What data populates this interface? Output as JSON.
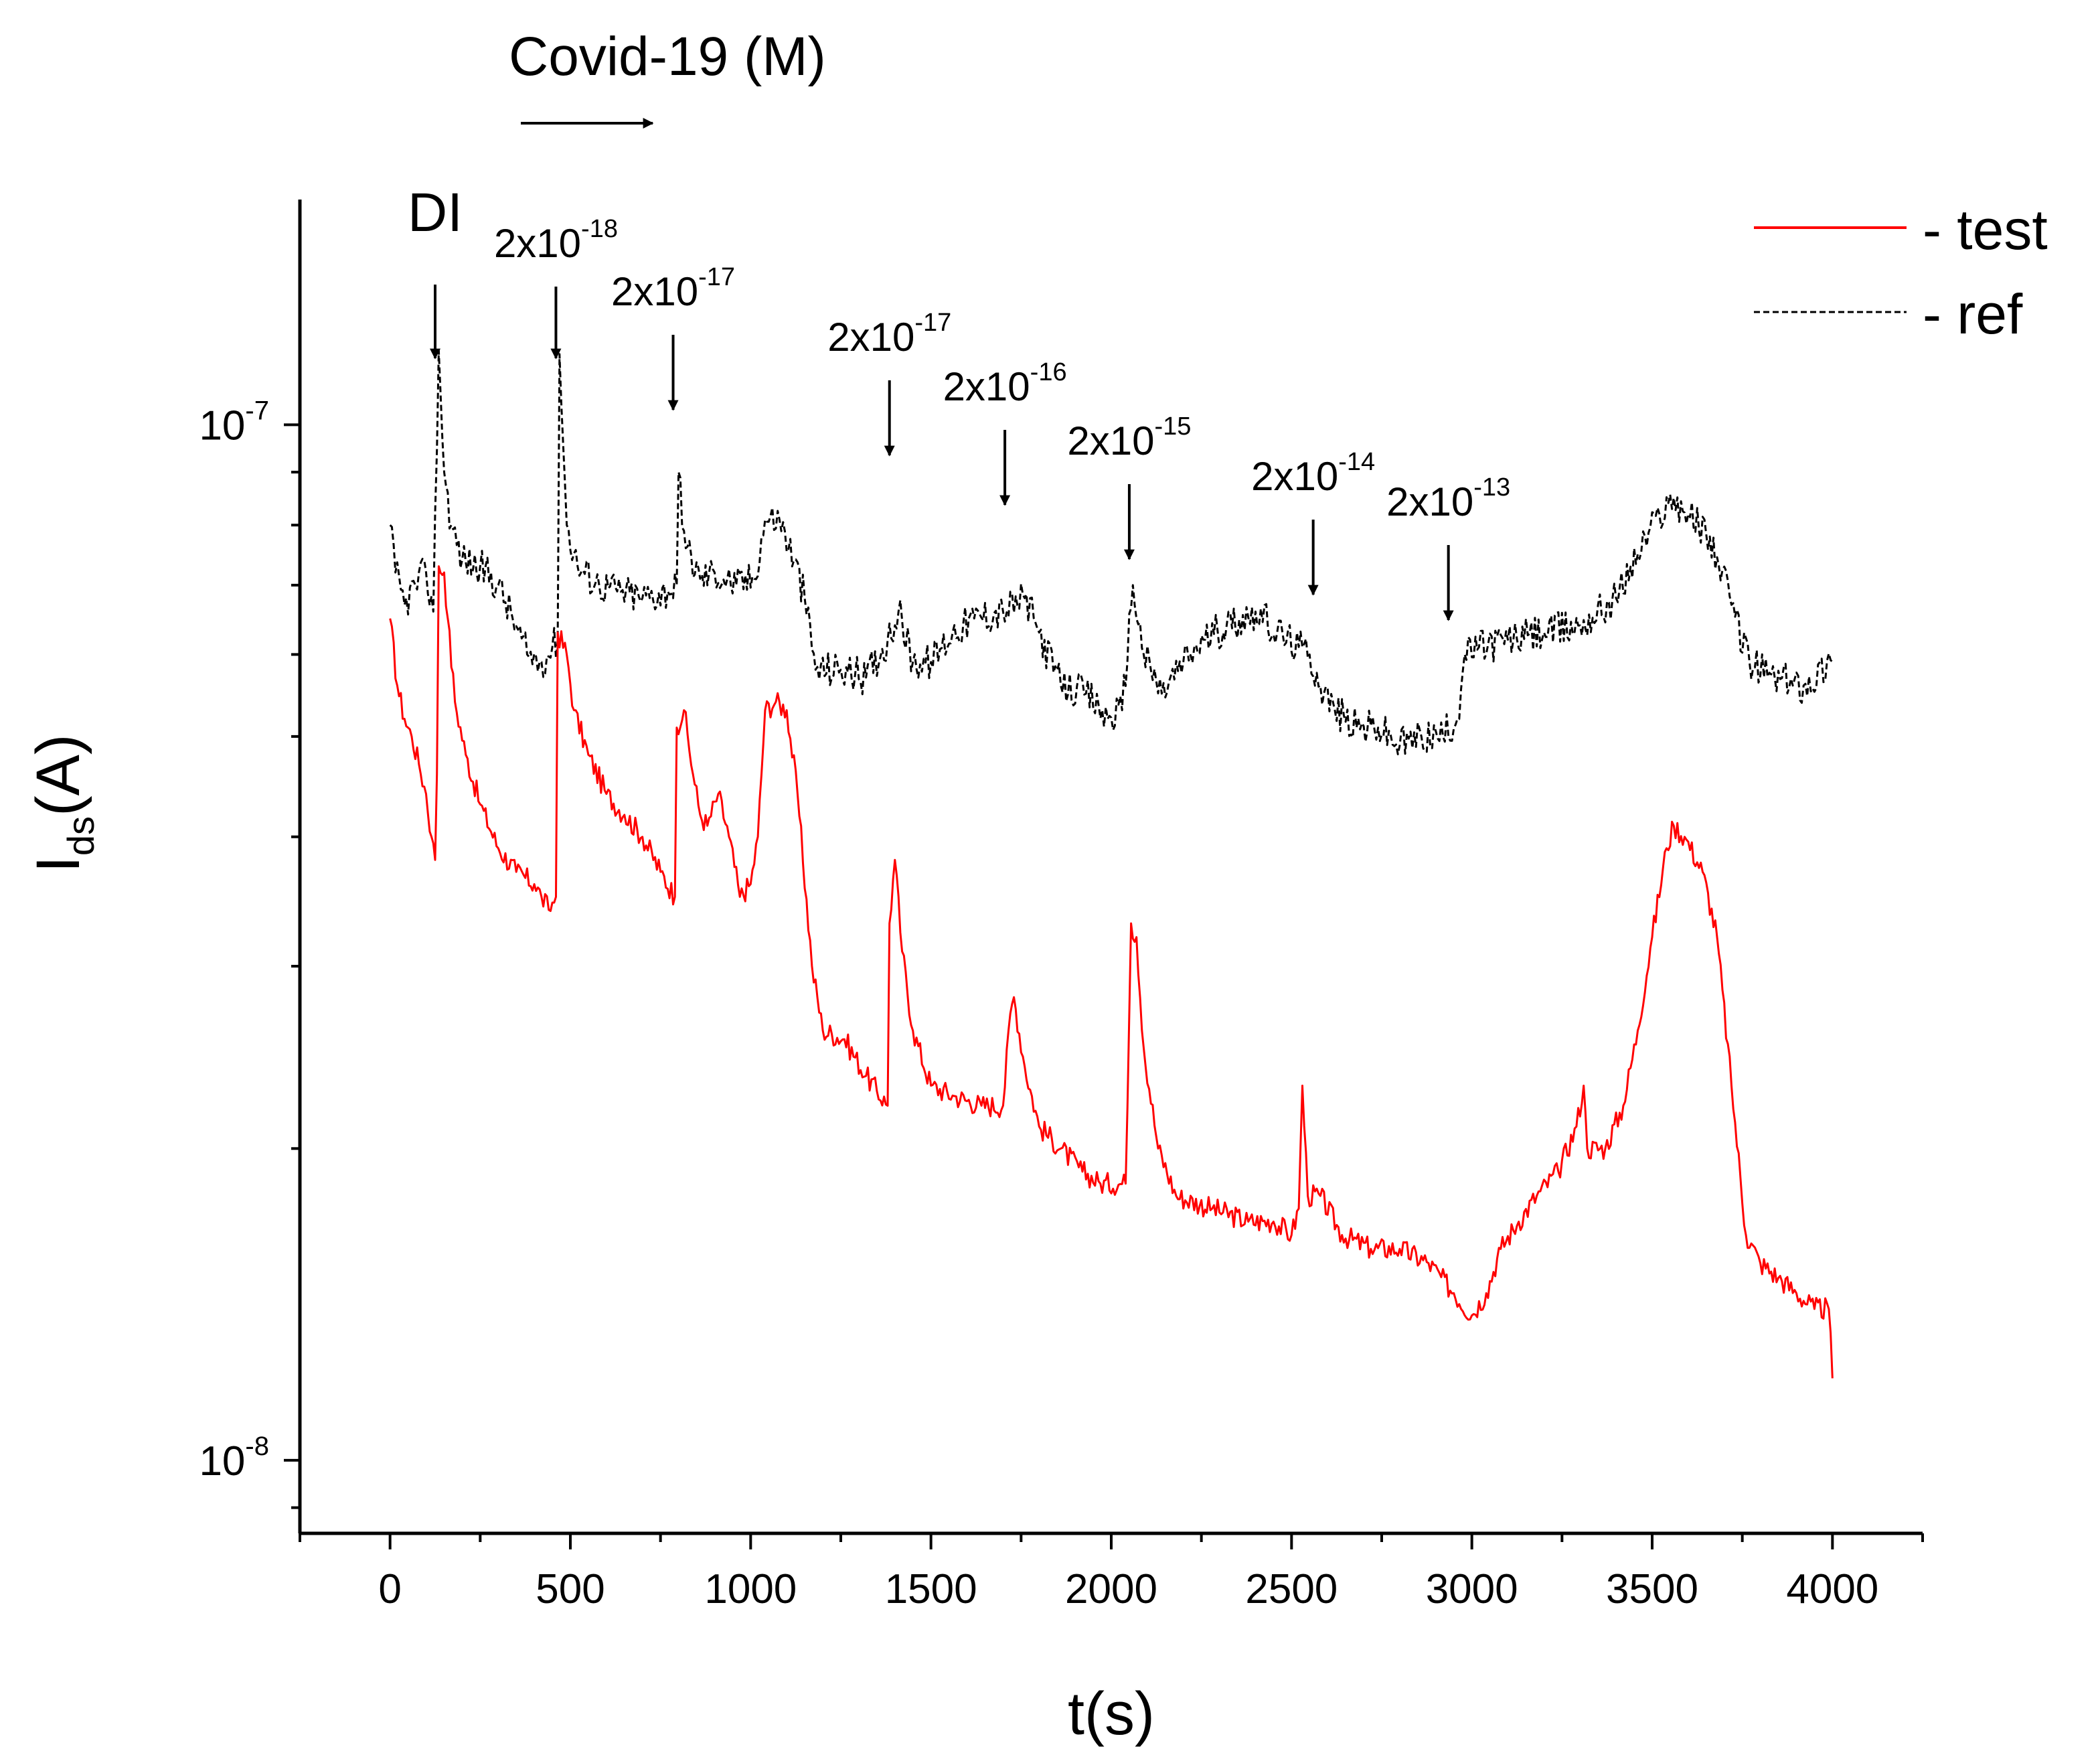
{
  "chart_data": {
    "type": "line",
    "title": "",
    "xlabel": "t(s)",
    "ylabel": "I",
    "ylabel_sub": "ds",
    "ylabel_suffix": "(A)",
    "yscale": "log",
    "xlim": [
      -250,
      4250
    ],
    "ylim": [
      8.5e-09,
      1.65e-07
    ],
    "x_ticks": [
      0,
      500,
      1000,
      1500,
      2000,
      2500,
      3000,
      3500,
      4000
    ],
    "x_tick_labels": [
      "0",
      "500",
      "1000",
      "1500",
      "2000",
      "2500",
      "3000",
      "3500",
      "4000"
    ],
    "y_ticks": [
      {
        "value": 1e-07,
        "base": "10",
        "exp": "-7"
      },
      {
        "value": 1e-08,
        "base": "10",
        "exp": "-8"
      }
    ],
    "grid": false,
    "legend_position": "top-right",
    "series": [
      {
        "name": "- test",
        "color": "#ff0000",
        "style": "solid",
        "points": [
          [
            0,
            6.5e-08
          ],
          [
            20,
            5.6e-08
          ],
          [
            40,
            5.2e-08
          ],
          [
            60,
            5e-08
          ],
          [
            80,
            4.7e-08
          ],
          [
            100,
            4.4e-08
          ],
          [
            115,
            4e-08
          ],
          [
            125,
            3.8e-08
          ],
          [
            130,
            4.6e-08
          ],
          [
            135,
            7.3e-08
          ],
          [
            150,
            7.2e-08
          ],
          [
            160,
            6.5e-08
          ],
          [
            180,
            5.4e-08
          ],
          [
            210,
            4.8e-08
          ],
          [
            250,
            4.3e-08
          ],
          [
            300,
            3.9e-08
          ],
          [
            350,
            3.7e-08
          ],
          [
            400,
            3.6e-08
          ],
          [
            420,
            3.5e-08
          ],
          [
            440,
            3.4e-08
          ],
          [
            460,
            3.5e-08
          ],
          [
            465,
            6.3e-08
          ],
          [
            490,
            6e-08
          ],
          [
            510,
            5.3e-08
          ],
          [
            550,
            4.8e-08
          ],
          [
            600,
            4.4e-08
          ],
          [
            650,
            4.2e-08
          ],
          [
            700,
            4e-08
          ],
          [
            750,
            3.7e-08
          ],
          [
            790,
            3.5e-08
          ],
          [
            795,
            5.1e-08
          ],
          [
            815,
            5.3e-08
          ],
          [
            840,
            4.6e-08
          ],
          [
            860,
            4.2e-08
          ],
          [
            880,
            4.1e-08
          ],
          [
            910,
            4.4e-08
          ],
          [
            940,
            4e-08
          ],
          [
            970,
            3.5e-08
          ],
          [
            1000,
            3.6e-08
          ],
          [
            1020,
            4e-08
          ],
          [
            1040,
            5.3e-08
          ],
          [
            1070,
            5.4e-08
          ],
          [
            1100,
            5.3e-08
          ],
          [
            1130,
            4.4e-08
          ],
          [
            1170,
            3e-08
          ],
          [
            1200,
            2.6e-08
          ],
          [
            1260,
            2.55e-08
          ],
          [
            1320,
            2.35e-08
          ],
          [
            1380,
            2.2e-08
          ],
          [
            1385,
            3.3e-08
          ],
          [
            1400,
            3.8e-08
          ],
          [
            1420,
            3.1e-08
          ],
          [
            1450,
            2.6e-08
          ],
          [
            1500,
            2.3e-08
          ],
          [
            1560,
            2.25e-08
          ],
          [
            1640,
            2.2e-08
          ],
          [
            1700,
            2.2e-08
          ],
          [
            1720,
            2.7e-08
          ],
          [
            1730,
            2.8e-08
          ],
          [
            1760,
            2.4e-08
          ],
          [
            1800,
            2.1e-08
          ],
          [
            1860,
            2e-08
          ],
          [
            1920,
            1.9e-08
          ],
          [
            1970,
            1.85e-08
          ],
          [
            2040,
            1.85e-08
          ],
          [
            2055,
            3.3e-08
          ],
          [
            2070,
            3.2e-08
          ],
          [
            2090,
            2.5e-08
          ],
          [
            2130,
            2e-08
          ],
          [
            2180,
            1.8e-08
          ],
          [
            2280,
            1.75e-08
          ],
          [
            2380,
            1.7e-08
          ],
          [
            2450,
            1.7e-08
          ],
          [
            2500,
            1.65e-08
          ],
          [
            2520,
            1.75e-08
          ],
          [
            2530,
            2.3e-08
          ],
          [
            2545,
            1.8e-08
          ],
          [
            2580,
            1.8e-08
          ],
          [
            2640,
            1.65e-08
          ],
          [
            2720,
            1.6e-08
          ],
          [
            2800,
            1.6e-08
          ],
          [
            2880,
            1.55e-08
          ],
          [
            2950,
            1.45e-08
          ],
          [
            3000,
            1.38e-08
          ],
          [
            3040,
            1.45e-08
          ],
          [
            3080,
            1.6e-08
          ],
          [
            3130,
            1.7e-08
          ],
          [
            3180,
            1.8e-08
          ],
          [
            3240,
            1.9e-08
          ],
          [
            3290,
            2.1e-08
          ],
          [
            3310,
            2.3e-08
          ],
          [
            3320,
            2e-08
          ],
          [
            3370,
            2e-08
          ],
          [
            3420,
            2.2e-08
          ],
          [
            3460,
            2.6e-08
          ],
          [
            3500,
            3.2e-08
          ],
          [
            3540,
            3.9e-08
          ],
          [
            3560,
            4.1e-08
          ],
          [
            3590,
            4e-08
          ],
          [
            3640,
            3.7e-08
          ],
          [
            3680,
            3.2e-08
          ],
          [
            3720,
            2.3e-08
          ],
          [
            3760,
            1.65e-08
          ],
          [
            3800,
            1.55e-08
          ],
          [
            3850,
            1.5e-08
          ],
          [
            3900,
            1.45e-08
          ],
          [
            3950,
            1.4e-08
          ],
          [
            3990,
            1.4e-08
          ],
          [
            4000,
            1.2e-08
          ]
        ]
      },
      {
        "name": "- ref",
        "color": "#000000",
        "style": "dashed",
        "points": [
          [
            0,
            8e-08
          ],
          [
            15,
            7.2e-08
          ],
          [
            40,
            6.7e-08
          ],
          [
            70,
            7e-08
          ],
          [
            100,
            7.2e-08
          ],
          [
            120,
            6.6e-08
          ],
          [
            135,
            1.18e-07
          ],
          [
            150,
            9e-08
          ],
          [
            170,
            8e-08
          ],
          [
            200,
            7.4e-08
          ],
          [
            250,
            7.3e-08
          ],
          [
            300,
            7e-08
          ],
          [
            340,
            6.5e-08
          ],
          [
            380,
            6e-08
          ],
          [
            420,
            5.9e-08
          ],
          [
            450,
            6.1e-08
          ],
          [
            465,
            6.2e-08
          ],
          [
            470,
            1.17e-07
          ],
          [
            490,
            8e-08
          ],
          [
            520,
            7.3e-08
          ],
          [
            580,
            7e-08
          ],
          [
            640,
            6.9e-08
          ],
          [
            700,
            6.8e-08
          ],
          [
            770,
            6.9e-08
          ],
          [
            795,
            7e-08
          ],
          [
            800,
            9e-08
          ],
          [
            820,
            7.6e-08
          ],
          [
            860,
            7.1e-08
          ],
          [
            900,
            7.2e-08
          ],
          [
            960,
            7e-08
          ],
          [
            1010,
            7.1e-08
          ],
          [
            1040,
            8.1e-08
          ],
          [
            1080,
            8.1e-08
          ],
          [
            1120,
            7.4e-08
          ],
          [
            1150,
            6.8e-08
          ],
          [
            1180,
            5.8e-08
          ],
          [
            1250,
            5.8e-08
          ],
          [
            1320,
            5.7e-08
          ],
          [
            1380,
            6.2e-08
          ],
          [
            1410,
            6.6e-08
          ],
          [
            1450,
            5.9e-08
          ],
          [
            1500,
            5.9e-08
          ],
          [
            1560,
            6.3e-08
          ],
          [
            1620,
            6.5e-08
          ],
          [
            1700,
            6.6e-08
          ],
          [
            1760,
            6.8e-08
          ],
          [
            1800,
            6.3e-08
          ],
          [
            1860,
            5.6e-08
          ],
          [
            1930,
            5.5e-08
          ],
          [
            1990,
            5.2e-08
          ],
          [
            2030,
            5.3e-08
          ],
          [
            2060,
            7e-08
          ],
          [
            2090,
            6e-08
          ],
          [
            2140,
            5.5e-08
          ],
          [
            2200,
            5.9e-08
          ],
          [
            2260,
            6.2e-08
          ],
          [
            2320,
            6.4e-08
          ],
          [
            2400,
            6.6e-08
          ],
          [
            2460,
            6.3e-08
          ],
          [
            2520,
            6.1e-08
          ],
          [
            2550,
            6e-08
          ],
          [
            2580,
            5.6e-08
          ],
          [
            2620,
            5.3e-08
          ],
          [
            2680,
            5.1e-08
          ],
          [
            2740,
            5.1e-08
          ],
          [
            2800,
            4.9e-08
          ],
          [
            2860,
            5e-08
          ],
          [
            2920,
            5e-08
          ],
          [
            2960,
            5.2e-08
          ],
          [
            2980,
            6e-08
          ],
          [
            3020,
            6.1e-08
          ],
          [
            3100,
            6.2e-08
          ],
          [
            3200,
            6.3e-08
          ],
          [
            3300,
            6.4e-08
          ],
          [
            3400,
            6.8e-08
          ],
          [
            3460,
            7.5e-08
          ],
          [
            3520,
            8.2e-08
          ],
          [
            3560,
            8.5e-08
          ],
          [
            3600,
            8.2e-08
          ],
          [
            3660,
            7.8e-08
          ],
          [
            3720,
            6.7e-08
          ],
          [
            3770,
            5.9e-08
          ],
          [
            3840,
            5.7e-08
          ],
          [
            3920,
            5.6e-08
          ],
          [
            4000,
            5.9e-08
          ]
        ]
      }
    ],
    "annotations": {
      "header_label": "Covid-19 (M)",
      "items": [
        {
          "label": "DI",
          "exp": "",
          "x": 125,
          "y": 7e-08
        },
        {
          "label": "2x10",
          "exp": "-18",
          "x": 460,
          "y": 7e-08
        },
        {
          "label": "2x10",
          "exp": "-17",
          "x": 785,
          "y": 1.4e-07
        },
        {
          "label": "2x10",
          "exp": "-17",
          "x": 1385,
          "y": 1.4e-07
        },
        {
          "label": "2x10",
          "exp": "-16",
          "x": 1705,
          "y": 1.4e-07
        },
        {
          "label": "2x10",
          "exp": "-15",
          "x": 2050,
          "y": 1.4e-07
        },
        {
          "label": "2x10",
          "exp": "-14",
          "x": 2560,
          "y": 1.4e-07
        },
        {
          "label": "2x10",
          "exp": "-13",
          "x": 2935,
          "y": 1.4e-07
        }
      ]
    }
  }
}
